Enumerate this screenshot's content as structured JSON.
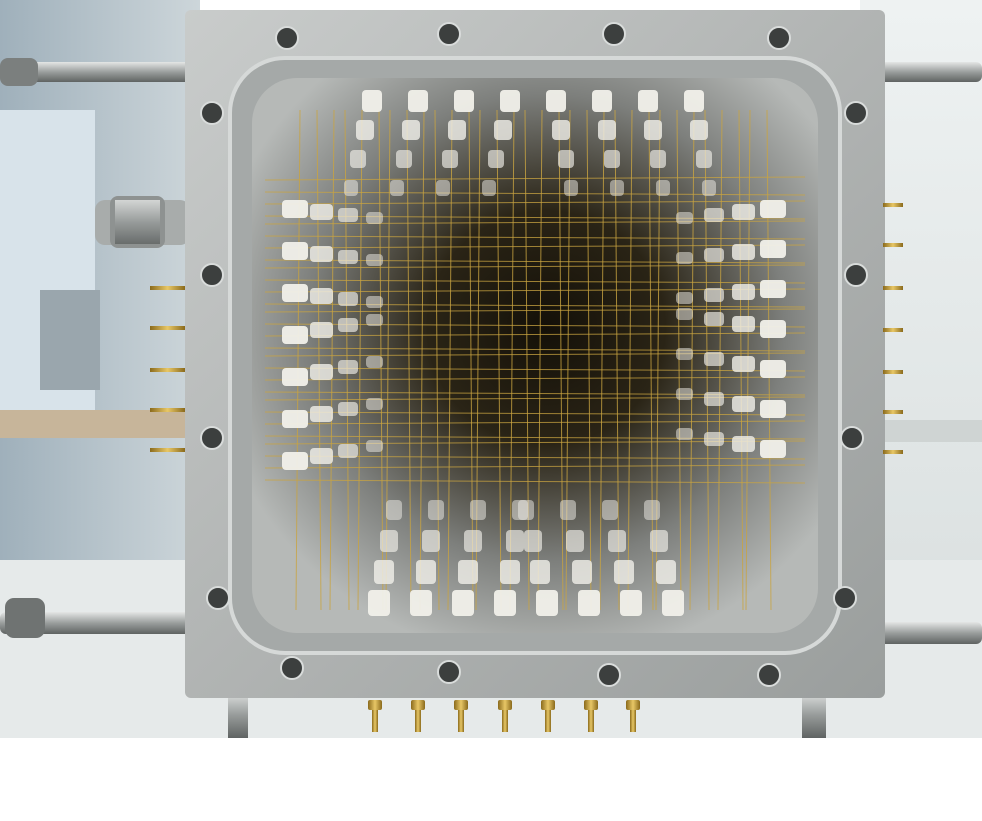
{
  "photo": {
    "subject": "square-wire-chamber-frame",
    "colors": {
      "frame_aluminum": "#b4b7b6",
      "frame_shadow": "#8d9190",
      "inner_wall": "#a9adac",
      "interior_dark": "#1e1a12",
      "gold_wire": "#c9a441",
      "insulator": "#f1f0ea",
      "background_left": "#b9c6cc",
      "background_right": "#dfe5e6",
      "page_background": "#ffffff"
    },
    "icons": [
      "bolt-icon",
      "gas-fitting-icon",
      "connector-pin-icon",
      "mounting-hole-icon"
    ]
  }
}
